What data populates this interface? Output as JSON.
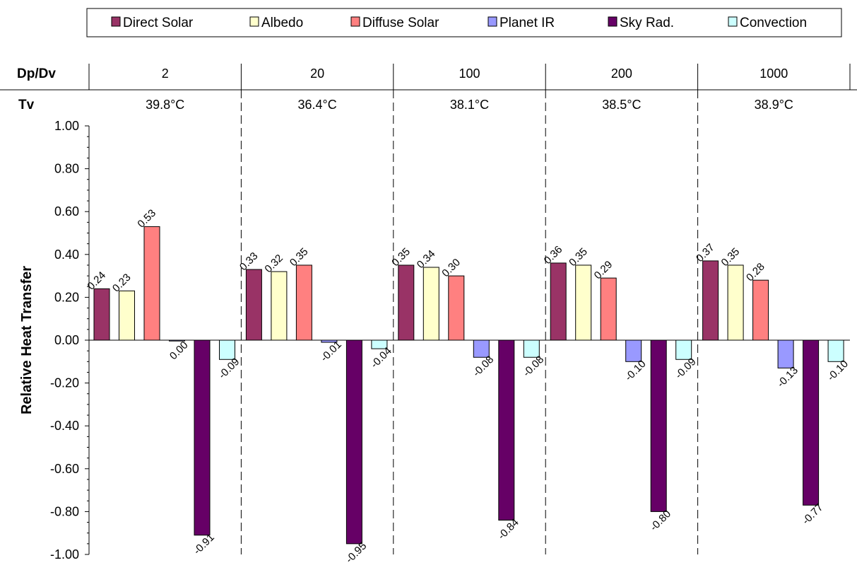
{
  "chart_data": {
    "type": "bar",
    "title": "",
    "xlabel": "",
    "ylabel": "Relative Heat Transfer",
    "ylim": [
      -1.0,
      1.0
    ],
    "yticks": [
      "1.00",
      "0.80",
      "0.60",
      "0.40",
      "0.20",
      "0.00",
      "-0.20",
      "-0.40",
      "-0.60",
      "-0.80",
      "-1.00"
    ],
    "legend_position": "top",
    "group_header_label": "Dp/Dv",
    "temp_header_label": "Tv",
    "categories": [
      "2",
      "20",
      "100",
      "200",
      "1000"
    ],
    "temperatures": [
      "39.8°C",
      "36.4°C",
      "38.1°C",
      "38.5°C",
      "38.9°C"
    ],
    "series": [
      {
        "name": "Direct Solar",
        "color": "#993366",
        "values": [
          0.24,
          0.33,
          0.35,
          0.36,
          0.37
        ],
        "labels": [
          "0.24",
          "0.33",
          "0.35",
          "0.36",
          "0.37"
        ]
      },
      {
        "name": "Albedo",
        "color": "#ffffcc",
        "values": [
          0.23,
          0.32,
          0.34,
          0.35,
          0.35
        ],
        "labels": [
          "0.23",
          "0.32",
          "0.34",
          "0.35",
          "0.35"
        ]
      },
      {
        "name": "Diffuse Solar",
        "color": "#ff8080",
        "values": [
          0.53,
          0.35,
          0.3,
          0.29,
          0.28
        ],
        "labels": [
          "0.53",
          "0.35",
          "0.30",
          "0.29",
          "0.28"
        ]
      },
      {
        "name": "Planet IR",
        "color": "#9999ff",
        "values": [
          0.0,
          -0.01,
          -0.08,
          -0.1,
          -0.13
        ],
        "labels": [
          "0.00",
          "-0.01",
          "-0.08",
          "-0.10",
          "-0.13"
        ]
      },
      {
        "name": "Sky Rad.",
        "color": "#660066",
        "values": [
          -0.91,
          -0.95,
          -0.84,
          -0.8,
          -0.77
        ],
        "labels": [
          "-0.91",
          "-0.95",
          "-0.84",
          "-0.80",
          "-0.77"
        ]
      },
      {
        "name": "Convection",
        "color": "#ccffff",
        "values": [
          -0.09,
          -0.04,
          -0.08,
          -0.09,
          -0.1
        ],
        "labels": [
          "-0.09",
          "-0.04",
          "-0.08",
          "-0.09",
          "-0.10"
        ]
      }
    ]
  }
}
